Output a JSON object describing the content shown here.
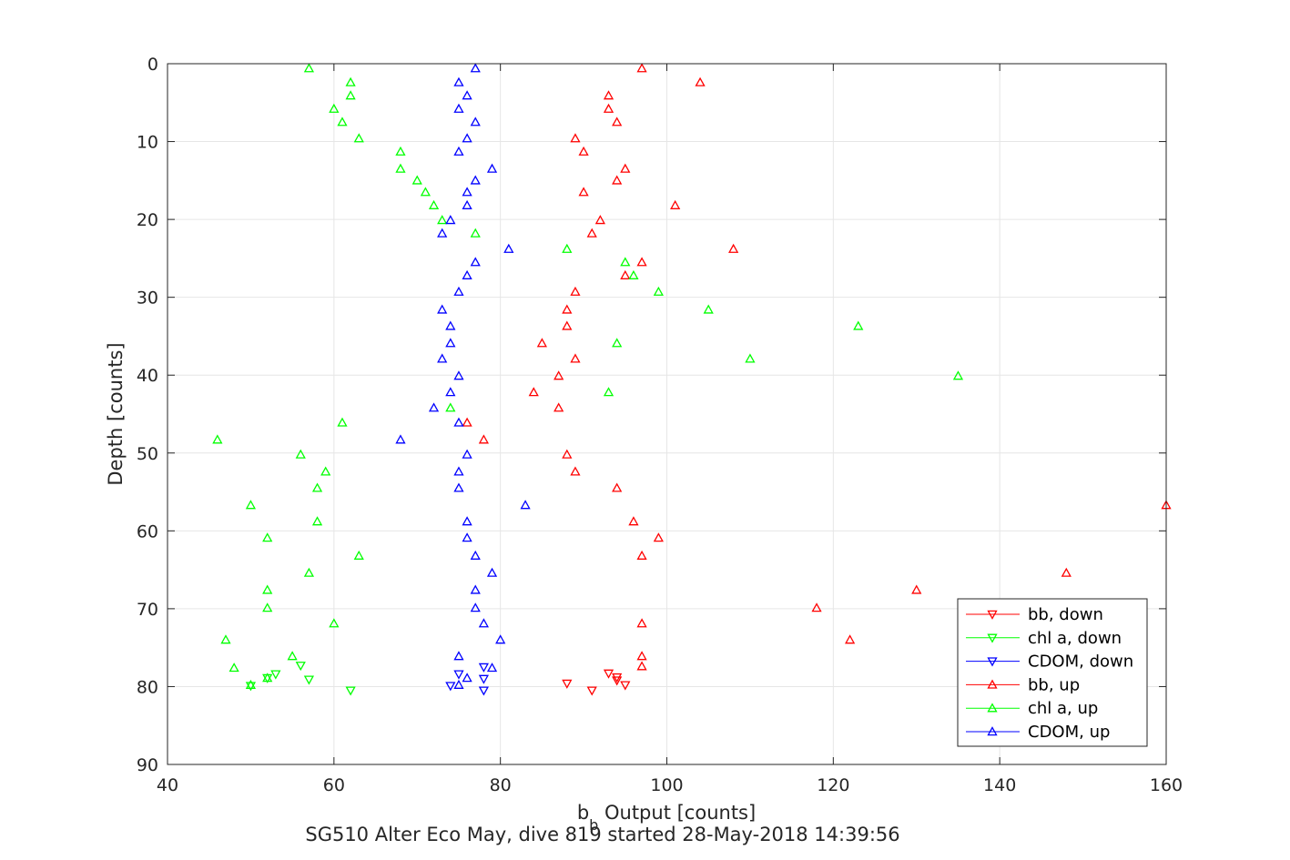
{
  "chart_data": {
    "type": "scatter",
    "title": "SG510 Alter Eco May, dive 819 started 28-May-2018 14:39:56",
    "xlabel_main": "b",
    "xlabel_sub": "b",
    "xlabel_rest": " Output [counts]",
    "ylabel": "Depth [counts]",
    "xlim": [
      40,
      160
    ],
    "ylim": [
      0,
      90
    ],
    "y_reversed": true,
    "xticks": [
      "40",
      "60",
      "80",
      "100",
      "120",
      "140",
      "160"
    ],
    "yticks": [
      "0",
      "10",
      "20",
      "30",
      "40",
      "50",
      "60",
      "70",
      "80",
      "90"
    ],
    "grid": true,
    "legend_position": "bottom-right",
    "series": [
      {
        "name": "bb, down",
        "color": "#ff0000",
        "marker": "down",
        "x": [
          93,
          94,
          95,
          94,
          91,
          88
        ],
        "y": [
          78.3,
          78.8,
          79.8,
          79.2,
          80.5,
          79.6
        ]
      },
      {
        "name": "chl a, down",
        "color": "#00ff00",
        "marker": "down",
        "x": [
          53,
          56,
          57,
          52,
          50,
          62
        ],
        "y": [
          78.4,
          77.3,
          79.1,
          78.9,
          79.9,
          80.5
        ]
      },
      {
        "name": "CDOM, down",
        "color": "#0000ff",
        "marker": "down",
        "x": [
          75,
          78,
          78,
          74,
          78
        ],
        "y": [
          78.4,
          77.5,
          79.0,
          79.9,
          80.5
        ]
      },
      {
        "name": "bb, up",
        "color": "#ff0000",
        "marker": "up",
        "x": [
          97,
          104,
          93,
          93,
          94,
          89,
          90,
          95,
          94,
          90,
          101,
          92,
          91,
          108,
          97,
          95,
          89,
          88,
          88,
          85,
          89,
          87,
          84,
          87,
          76,
          78,
          88,
          89,
          94,
          160,
          96,
          99,
          97,
          148,
          130,
          118,
          97,
          122,
          97,
          97
        ],
        "y": [
          0.6,
          2.4,
          4.1,
          5.8,
          7.5,
          9.6,
          11.3,
          13.5,
          15.0,
          16.5,
          18.2,
          20.1,
          21.8,
          23.8,
          25.5,
          27.2,
          29.3,
          31.6,
          33.7,
          35.9,
          37.9,
          40.1,
          42.2,
          44.2,
          46.1,
          48.3,
          50.2,
          52.4,
          54.5,
          56.7,
          58.8,
          60.9,
          63.2,
          65.4,
          67.6,
          69.9,
          71.9,
          74.0,
          76.1,
          77.4
        ]
      },
      {
        "name": "chl a, up",
        "color": "#00ff00",
        "marker": "up",
        "x": [
          57,
          62,
          62,
          60,
          61,
          63,
          68,
          68,
          70,
          71,
          72,
          73,
          77,
          88,
          95,
          96,
          99,
          105,
          123,
          94,
          110,
          135,
          93,
          74,
          61,
          46,
          56,
          59,
          58,
          50,
          58,
          52,
          63,
          57,
          52,
          52,
          60,
          47,
          55,
          48,
          52,
          50
        ],
        "y": [
          0.6,
          2.4,
          4.1,
          5.8,
          7.5,
          9.6,
          11.3,
          13.5,
          15.0,
          16.5,
          18.2,
          20.1,
          21.8,
          23.8,
          25.5,
          27.2,
          29.3,
          31.6,
          33.7,
          35.9,
          37.9,
          40.1,
          42.2,
          44.2,
          46.1,
          48.3,
          50.2,
          52.4,
          54.5,
          56.7,
          58.8,
          60.9,
          63.2,
          65.4,
          67.6,
          69.9,
          71.9,
          74.0,
          76.1,
          77.6,
          78.9,
          79.8
        ]
      },
      {
        "name": "CDOM, up",
        "color": "#0000ff",
        "marker": "up",
        "x": [
          77,
          75,
          76,
          75,
          77,
          76,
          75,
          79,
          77,
          76,
          76,
          74,
          73,
          81,
          77,
          76,
          75,
          73,
          74,
          74,
          73,
          75,
          74,
          72,
          75,
          68,
          76,
          75,
          75,
          83,
          76,
          76,
          77,
          79,
          77,
          77,
          78,
          80,
          75,
          79,
          76,
          75
        ],
        "y": [
          0.6,
          2.4,
          4.1,
          5.8,
          7.5,
          9.6,
          11.3,
          13.5,
          15.0,
          16.5,
          18.2,
          20.1,
          21.8,
          23.8,
          25.5,
          27.2,
          29.3,
          31.6,
          33.7,
          35.9,
          37.9,
          40.1,
          42.2,
          44.2,
          46.1,
          48.3,
          50.2,
          52.4,
          54.5,
          56.7,
          58.8,
          60.9,
          63.2,
          65.4,
          67.6,
          69.9,
          71.9,
          74.0,
          76.1,
          77.6,
          78.9,
          79.8
        ]
      }
    ]
  }
}
